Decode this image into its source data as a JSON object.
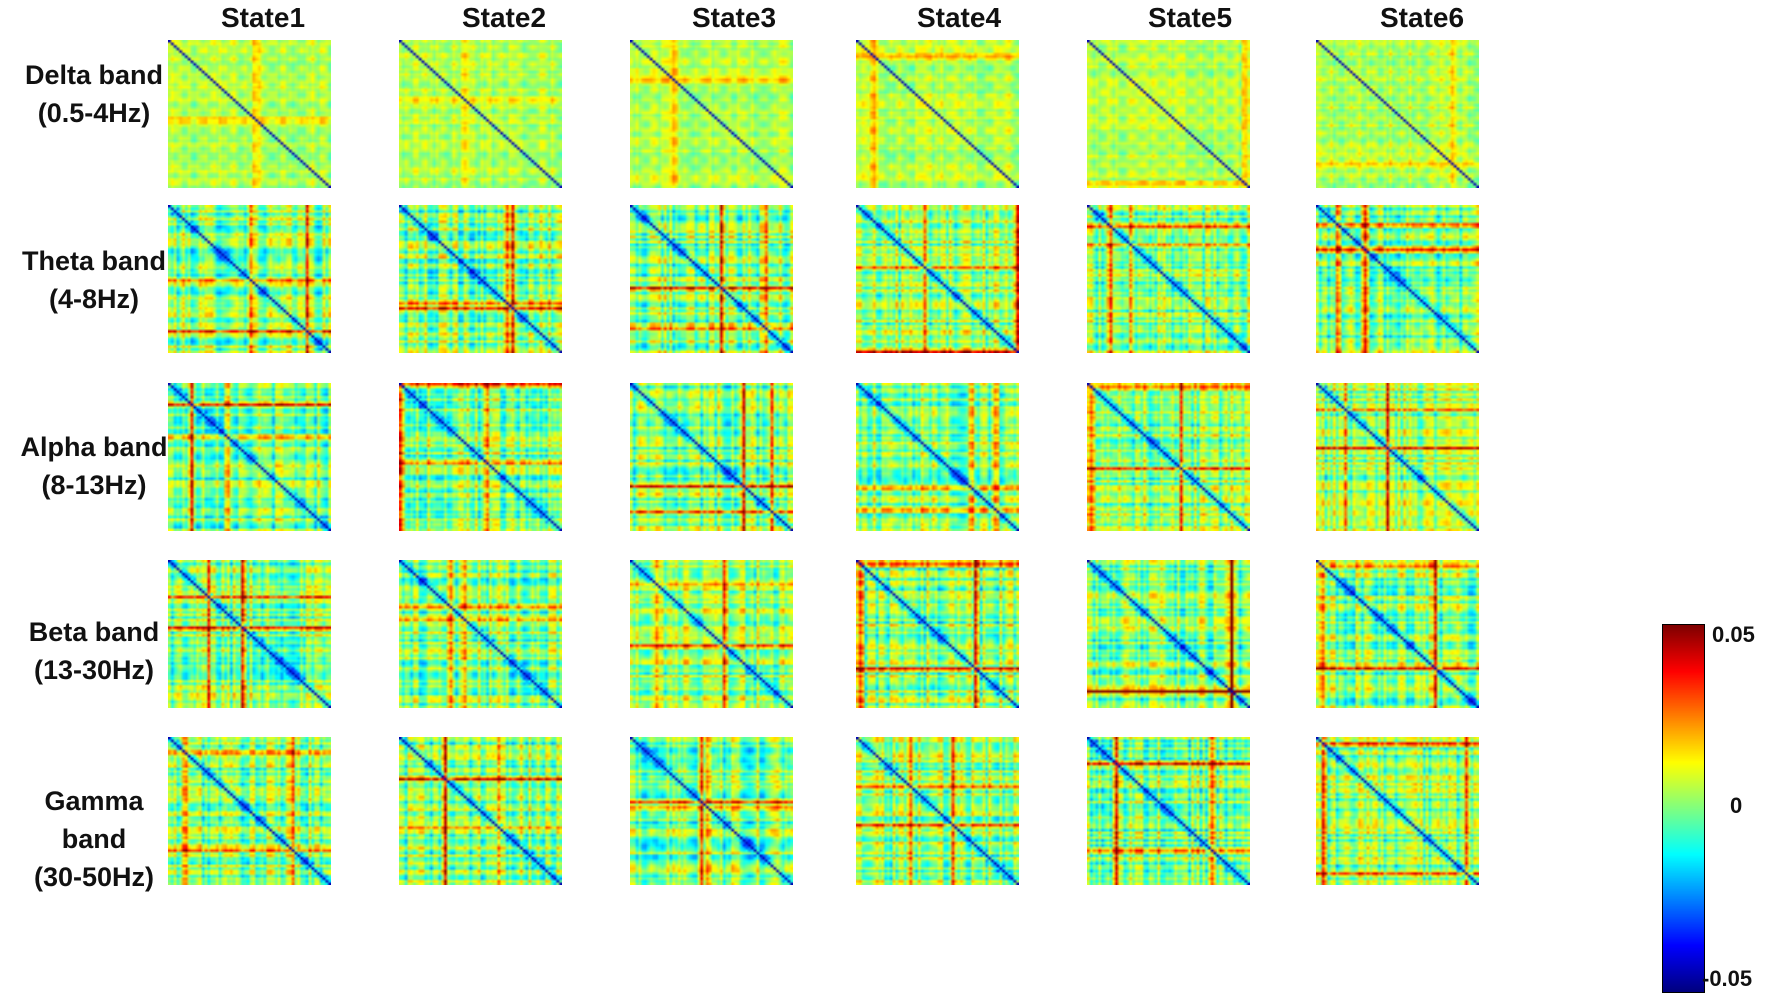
{
  "columns": [
    "State1",
    "State2",
    "State3",
    "State4",
    "State5",
    "State6"
  ],
  "rows": [
    {
      "label_lines": [
        "Delta band",
        "(0.5-4Hz)"
      ]
    },
    {
      "label_lines": [
        "Theta band",
        "(4-8Hz)"
      ]
    },
    {
      "label_lines": [
        "Alpha band",
        "(8-13Hz)"
      ]
    },
    {
      "label_lines": [
        "Beta band",
        "(13-30Hz)"
      ]
    },
    {
      "label_lines": [
        "Gamma",
        "band",
        "(30-50Hz)"
      ]
    }
  ],
  "colorbar": {
    "ticks": [
      "0.05",
      "0",
      "-0.05"
    ],
    "min": -0.05,
    "max": 0.05,
    "colormap": "jet"
  },
  "chart_data": {
    "type": "heatmap",
    "panel_grid": {
      "rows": 5,
      "cols": 6
    },
    "value_range": [
      -0.05,
      0.05
    ],
    "diagonal": "minimum (deep blue)"
  }
}
